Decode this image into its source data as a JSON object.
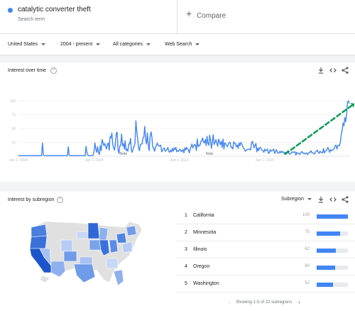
{
  "search": {
    "term": "catalytic converter theft",
    "term_label": "Search term",
    "compare_label": "Compare"
  },
  "filters": {
    "region": "United States",
    "period": "2004 - present",
    "category": "All categories",
    "property": "Web Search"
  },
  "interest_over_time": {
    "title": "Interest over time",
    "help_icon": "?",
    "tools": [
      "download-icon",
      "embed-icon",
      "share-icon"
    ]
  },
  "chart_data": {
    "type": "line",
    "ylim": [
      0,
      100
    ],
    "yticks": [
      "100",
      "75",
      "50",
      "25"
    ],
    "xticks": [
      "Jan 1, 2004",
      "Jan 1, 2009",
      "Jan 1, 2014",
      "Jan 1, 2019"
    ],
    "annotations": [
      "Note",
      "Note"
    ],
    "series_color": "#4285f4",
    "trend_arrow_color": "#0f9d58",
    "values": [
      1,
      1,
      1,
      1,
      1,
      1,
      1,
      1,
      1,
      1,
      1,
      1,
      1,
      1,
      1,
      1,
      1,
      1,
      1,
      1,
      1,
      1,
      1,
      1,
      1,
      1,
      1,
      24,
      3,
      1,
      1,
      1,
      1,
      1,
      1,
      1,
      1,
      1,
      1,
      1,
      1,
      1,
      1,
      1,
      1,
      1,
      1,
      1,
      1,
      1,
      1,
      1,
      1,
      1,
      1,
      1,
      17,
      2,
      1,
      1,
      1,
      1,
      1,
      1,
      1,
      1,
      1,
      1,
      1,
      1,
      1,
      1,
      1,
      1,
      1,
      1,
      18,
      6,
      2,
      1,
      1,
      1,
      1,
      1,
      2,
      9,
      24,
      13,
      7,
      17,
      7,
      3,
      19,
      10,
      30,
      25,
      19,
      23,
      18,
      13,
      22,
      24,
      11,
      35,
      33,
      42,
      22,
      15,
      11,
      23,
      42,
      43,
      11,
      5,
      19,
      20,
      40,
      19,
      23,
      13,
      28,
      10,
      13,
      9,
      22,
      22,
      32,
      10,
      7,
      14,
      18,
      23,
      64,
      45,
      31,
      16,
      10,
      20,
      22,
      22,
      33,
      35,
      54,
      30,
      22,
      42,
      19,
      10,
      35,
      44,
      35,
      16,
      15,
      9,
      16,
      19,
      24,
      20,
      18,
      19,
      20,
      8,
      10,
      14,
      15,
      9,
      10,
      12,
      16,
      9,
      7,
      11,
      8,
      14,
      9,
      15,
      12,
      16,
      8,
      10,
      9,
      12,
      12,
      8,
      10,
      12,
      6,
      15,
      11,
      16,
      13,
      12,
      6,
      12,
      17,
      22,
      15,
      19,
      21,
      20,
      10,
      31,
      17,
      20,
      19,
      26,
      28,
      33,
      26,
      24,
      30,
      19,
      36,
      23,
      20,
      38,
      28,
      14,
      27,
      39,
      21,
      25,
      30,
      24,
      18,
      31,
      26,
      21,
      27,
      16,
      31,
      13,
      24,
      23,
      19,
      17,
      22,
      25,
      25,
      16,
      16,
      13,
      26,
      23,
      23,
      17,
      20,
      14,
      24,
      19,
      25,
      22,
      18,
      15,
      13,
      9,
      10,
      12,
      12,
      13,
      13,
      11,
      24,
      27,
      21,
      15,
      20,
      23,
      8,
      15,
      10,
      15,
      16,
      13,
      11,
      10,
      7,
      13,
      10,
      11,
      13,
      5,
      6,
      12,
      9,
      10,
      11,
      13,
      5,
      8,
      12,
      8,
      5,
      6,
      9,
      6,
      9,
      7,
      8,
      4,
      7,
      6,
      8,
      10,
      5,
      4,
      4,
      7,
      8,
      7,
      7,
      8,
      2,
      7,
      5,
      5,
      3,
      5,
      8,
      8,
      5,
      6,
      4,
      5,
      6,
      3,
      5,
      7,
      7,
      10,
      6,
      6,
      5,
      4,
      8,
      9,
      11,
      7,
      5,
      9,
      7,
      7,
      6,
      14,
      6,
      9,
      10,
      12,
      16,
      11,
      7,
      12,
      10,
      11,
      12,
      14,
      19,
      20,
      13,
      19,
      20,
      19,
      26,
      40,
      47,
      60,
      55,
      70,
      62,
      77,
      98,
      100,
      95
    ]
  },
  "interest_by_subregion": {
    "title": "Interest by subregion",
    "help_icon": "?",
    "selector": "Subregion",
    "tools": [
      "download-icon",
      "embed-icon",
      "share-icon"
    ],
    "rows": [
      {
        "rank": "1",
        "name": "California",
        "value": 100
      },
      {
        "rank": "2",
        "name": "Minnesota",
        "value": 75
      },
      {
        "rank": "3",
        "name": "Illinois",
        "value": 62
      },
      {
        "rank": "4",
        "name": "Oregon",
        "value": 60
      },
      {
        "rank": "5",
        "name": "Washington",
        "value": 52
      }
    ],
    "pager": "Showing 1-5 of 22 subregions"
  },
  "colors": {
    "accent": "#4285f4",
    "map_none": "#e0e0e0"
  }
}
